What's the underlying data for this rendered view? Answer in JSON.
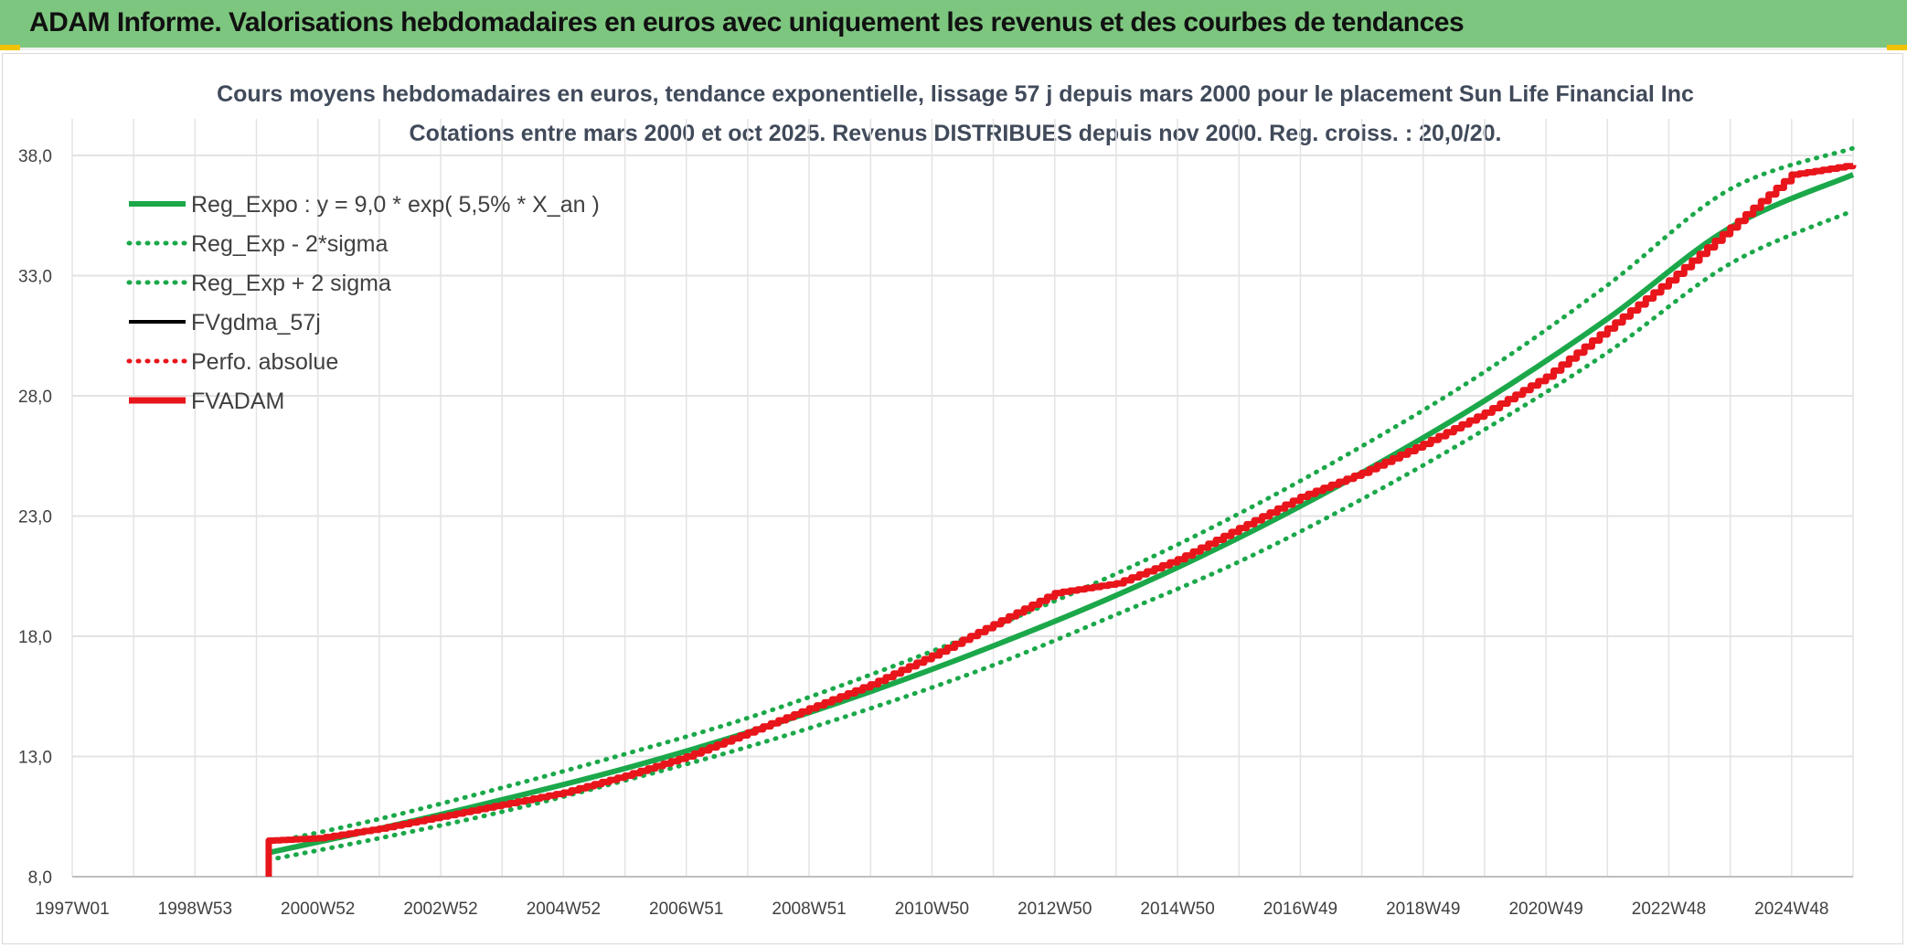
{
  "header": {
    "title": "ADAM Informe. Valorisations hebdomadaires en euros avec uniquement les revenus et des courbes de tendances"
  },
  "colors": {
    "header_bg": "#7dc67f",
    "reg": "#1ba84a",
    "fv": "#000000",
    "adam": "#e8151b",
    "grid": "#d9d9d9"
  },
  "chart_data": {
    "type": "line",
    "title": "Cours moyens hebdomadaires en euros, tendance exponentielle, lissage 57 j depuis mars 2000 pour le placement Sun Life Financial Inc",
    "subtitle": "Cotations entre mars 2000 et oct 2025. Revenus DISTRIBUES depuis nov 2000. Reg. croiss. : 20,0/20.",
    "xlabel": "",
    "ylabel": "",
    "x_tick_labels": [
      "1997W01",
      "1998W53",
      "2000W52",
      "2002W52",
      "2004W52",
      "2006W51",
      "2008W51",
      "2010W50",
      "2012W50",
      "2014W50",
      "2016W49",
      "2018W49",
      "2020W49",
      "2022W48",
      "2024W48"
    ],
    "x_tick_years": [
      1997,
      1999,
      2001,
      2003,
      2005,
      2007,
      2009,
      2011,
      2013,
      2015,
      2017,
      2019,
      2021,
      2023,
      2025
    ],
    "xlim": [
      1997.0,
      2026.0
    ],
    "ylim": [
      8.0,
      38.0
    ],
    "y_ticks": [
      8.0,
      13.0,
      18.0,
      23.0,
      28.0,
      33.0,
      38.0
    ],
    "y_tick_labels": [
      "8,0",
      "13,0",
      "18,0",
      "23,0",
      "28,0",
      "33,0",
      "38,0"
    ],
    "grid": true,
    "legend_position": "top-left",
    "legend": [
      {
        "label": "Reg_Expo : y = 9,0 * exp( 5,5% *  X_an )",
        "color": "#1ba84a",
        "style": "solid"
      },
      {
        "label": "Reg_Exp - 2*sigma",
        "color": "#1ba84a",
        "style": "dotted"
      },
      {
        "label": "Reg_Exp + 2 sigma",
        "color": "#1ba84a",
        "style": "dotted"
      },
      {
        "label": "FVgdma_57j",
        "color": "#000000",
        "style": "solid"
      },
      {
        "label": "Perfo. absolue",
        "color": "#e8151b",
        "style": "dotted"
      },
      {
        "label": "FVADAM",
        "color": "#e8151b",
        "style": "solid-thick"
      }
    ],
    "series": [
      {
        "name": "Reg_Expo : y = 9,0 * exp( 5,5% *  X_an )",
        "x": [
          2000.2,
          2002,
          2004,
          2006,
          2008,
          2010,
          2012,
          2014,
          2016,
          2018,
          2020,
          2022,
          2024,
          2026
        ],
        "values": [
          9.0,
          10.0,
          11.2,
          12.5,
          14.0,
          15.7,
          17.6,
          19.7,
          22.1,
          24.8,
          27.8,
          31.2,
          35.0,
          37.2
        ]
      },
      {
        "name": "Reg_Exp - 2*sigma",
        "x": [
          2000.2,
          2002,
          2004,
          2006,
          2008,
          2010,
          2012,
          2014,
          2016,
          2018,
          2020,
          2022,
          2024,
          2026
        ],
        "values": [
          8.7,
          9.6,
          10.7,
          12.0,
          13.4,
          15.0,
          16.8,
          18.9,
          21.1,
          23.7,
          26.6,
          29.8,
          33.5,
          35.7
        ]
      },
      {
        "name": "Reg_Exp + 2 sigma",
        "x": [
          2000.2,
          2002,
          2004,
          2006,
          2008,
          2010,
          2012,
          2014,
          2016,
          2018,
          2020,
          2022,
          2024,
          2026
        ],
        "values": [
          9.4,
          10.4,
          11.7,
          13.1,
          14.6,
          16.4,
          18.4,
          20.6,
          23.1,
          25.9,
          29.0,
          32.6,
          36.6,
          38.3
        ]
      },
      {
        "name": "FVADAM",
        "x": [
          2000.2,
          2000.2,
          2001,
          2002,
          2003,
          2004,
          2005,
          2006,
          2007,
          2008,
          2009,
          2010,
          2011,
          2012,
          2013,
          2014,
          2015,
          2016,
          2017,
          2018,
          2019,
          2020,
          2021,
          2022,
          2023,
          2024,
          2025,
          2026
        ],
        "values": [
          8.0,
          9.5,
          9.6,
          10.0,
          10.5,
          11.0,
          11.5,
          12.2,
          13.0,
          14.0,
          15.0,
          16.0,
          17.2,
          18.5,
          19.8,
          20.2,
          21.2,
          22.5,
          23.8,
          24.8,
          26.0,
          27.3,
          28.8,
          30.8,
          32.8,
          35.0,
          37.2,
          37.6
        ]
      }
    ]
  }
}
